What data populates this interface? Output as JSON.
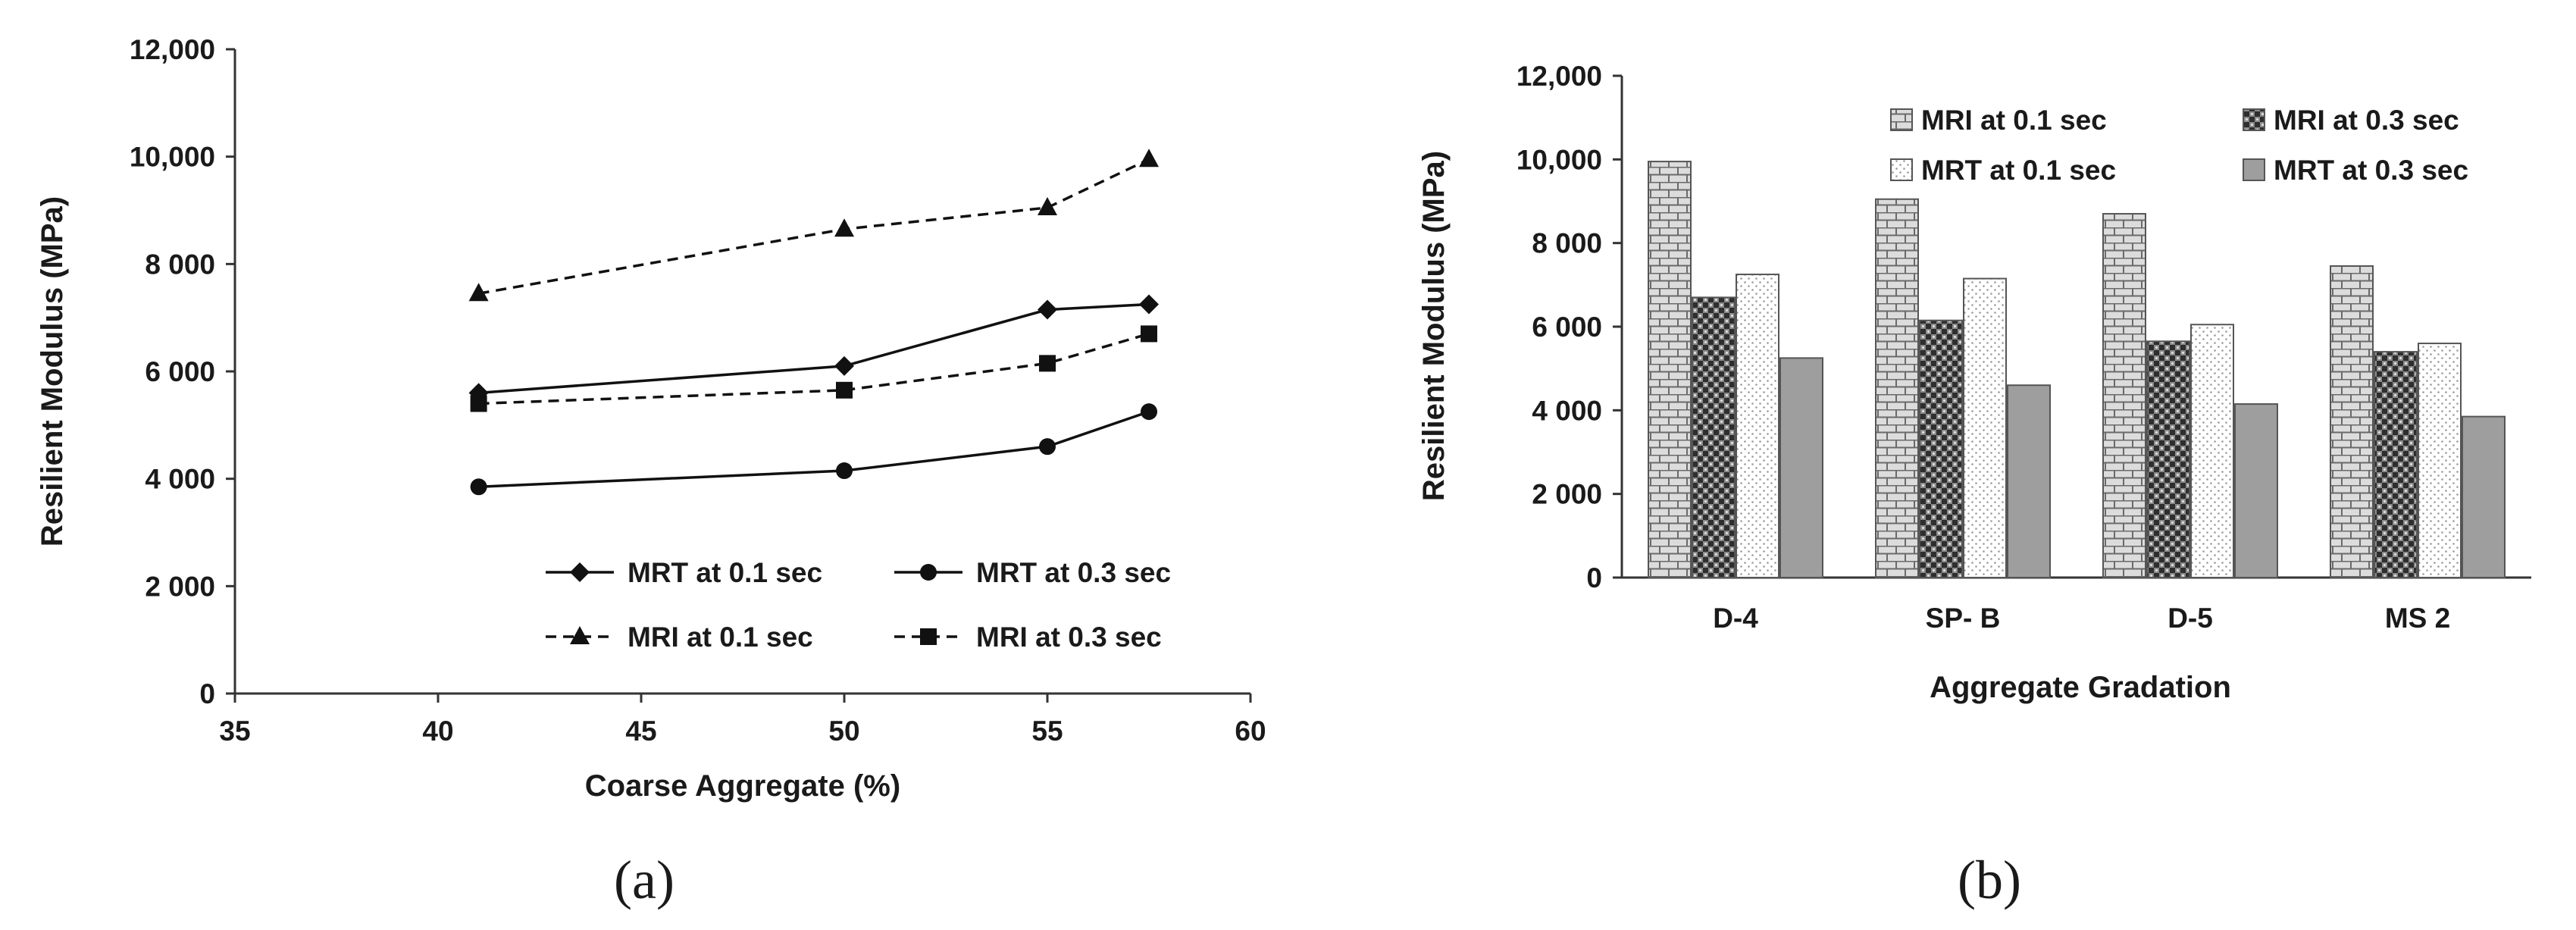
{
  "chart_data": [
    {
      "panel": "(a)",
      "type": "line",
      "xlabel": "Coarse Aggregate (%)",
      "ylabel": "Resilient Modulus (MPa)",
      "xlim": [
        35,
        60
      ],
      "ylim": [
        0,
        12000
      ],
      "x_ticks": [
        "35",
        "40",
        "45",
        "50",
        "55",
        "60"
      ],
      "y_ticks": [
        "0",
        "2 000",
        "4 000",
        "6 000",
        "8 000",
        "10,000",
        "12,000"
      ],
      "legend_position": "bottom-right",
      "x": [
        41,
        50,
        55,
        57.5
      ],
      "series": [
        {
          "name": "MRT at 0.1 sec",
          "values": [
            5600,
            6100,
            7150,
            7250
          ],
          "marker": "diamond",
          "dash": "solid"
        },
        {
          "name": "MRT at 0.3 sec",
          "values": [
            3850,
            4150,
            4600,
            5250
          ],
          "marker": "circle",
          "dash": "solid"
        },
        {
          "name": "MRI at 0.1 sec",
          "values": [
            7450,
            8650,
            9050,
            9950
          ],
          "marker": "triangle",
          "dash": "dashed"
        },
        {
          "name": "MRI at 0.3 sec",
          "values": [
            5400,
            5650,
            6150,
            6700
          ],
          "marker": "square",
          "dash": "dashed"
        }
      ]
    },
    {
      "panel": "(b)",
      "type": "bar",
      "xlabel": "Aggregate Gradation",
      "ylabel": "Resilient Modulus (MPa)",
      "ylim": [
        0,
        12000
      ],
      "y_ticks": [
        "0",
        "2 000",
        "4 000",
        "6 000",
        "8 000",
        "10,000",
        "12,000"
      ],
      "legend_position": "top",
      "categories": [
        "D-4",
        "SP- B",
        "D-5",
        "MS 2"
      ],
      "series": [
        {
          "name": "MRI at 0.1 sec",
          "values": [
            9950,
            9050,
            8700,
            7450
          ],
          "pattern": "brick"
        },
        {
          "name": "MRI at 0.3 sec",
          "values": [
            6700,
            6150,
            5650,
            5400
          ],
          "pattern": "checker"
        },
        {
          "name": "MRT at 0.1 sec",
          "values": [
            7250,
            7150,
            6050,
            5600
          ],
          "pattern": "dots"
        },
        {
          "name": "MRT at 0.3 sec",
          "values": [
            5250,
            4600,
            4150,
            3850
          ],
          "pattern": "solid-gray"
        }
      ]
    }
  ]
}
